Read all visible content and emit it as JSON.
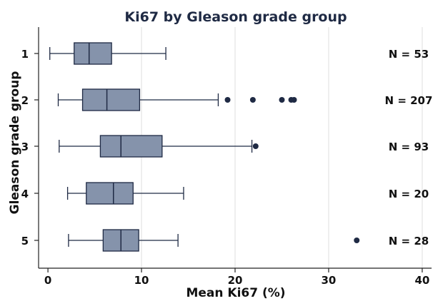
{
  "chart_data": {
    "type": "boxplot",
    "orientation": "horizontal",
    "title": "Ki67 by Gleason grade group",
    "xlabel": "Mean Ki67 (%)",
    "ylabel": "Gleason grade group",
    "xlim": [
      -1,
      41
    ],
    "xticks": [
      "0",
      "10",
      "20",
      "30",
      "40"
    ],
    "xtick_values": [
      0,
      10,
      20,
      30,
      40
    ],
    "grid": "vertical",
    "box_color": "#8593ab",
    "box_edge_color": "#1f2a44",
    "outlier_color": "#1f2a44",
    "groups": [
      {
        "label": "1",
        "whisker_low": 0.2,
        "q1": 2.8,
        "median": 4.4,
        "q3": 6.8,
        "whisker_high": 12.6,
        "outliers": [],
        "n_label": "N = 53"
      },
      {
        "label": "2",
        "whisker_low": 1.1,
        "q1": 3.7,
        "median": 6.3,
        "q3": 9.8,
        "whisker_high": 18.2,
        "outliers": [
          19.2,
          21.9,
          25.0,
          26.0,
          26.3
        ],
        "n_label": "N = 207"
      },
      {
        "label": "3",
        "whisker_low": 1.2,
        "q1": 5.6,
        "median": 7.8,
        "q3": 12.2,
        "whisker_high": 21.8,
        "outliers": [
          22.2
        ],
        "n_label": "N = 93"
      },
      {
        "label": "4",
        "whisker_low": 2.1,
        "q1": 4.1,
        "median": 7.0,
        "q3": 9.1,
        "whisker_high": 14.5,
        "outliers": [],
        "n_label": "N = 20"
      },
      {
        "label": "5",
        "whisker_low": 2.2,
        "q1": 5.9,
        "median": 7.8,
        "q3": 9.7,
        "whisker_high": 13.9,
        "outliers": [
          33.0
        ],
        "n_label": "N = 28"
      }
    ]
  }
}
